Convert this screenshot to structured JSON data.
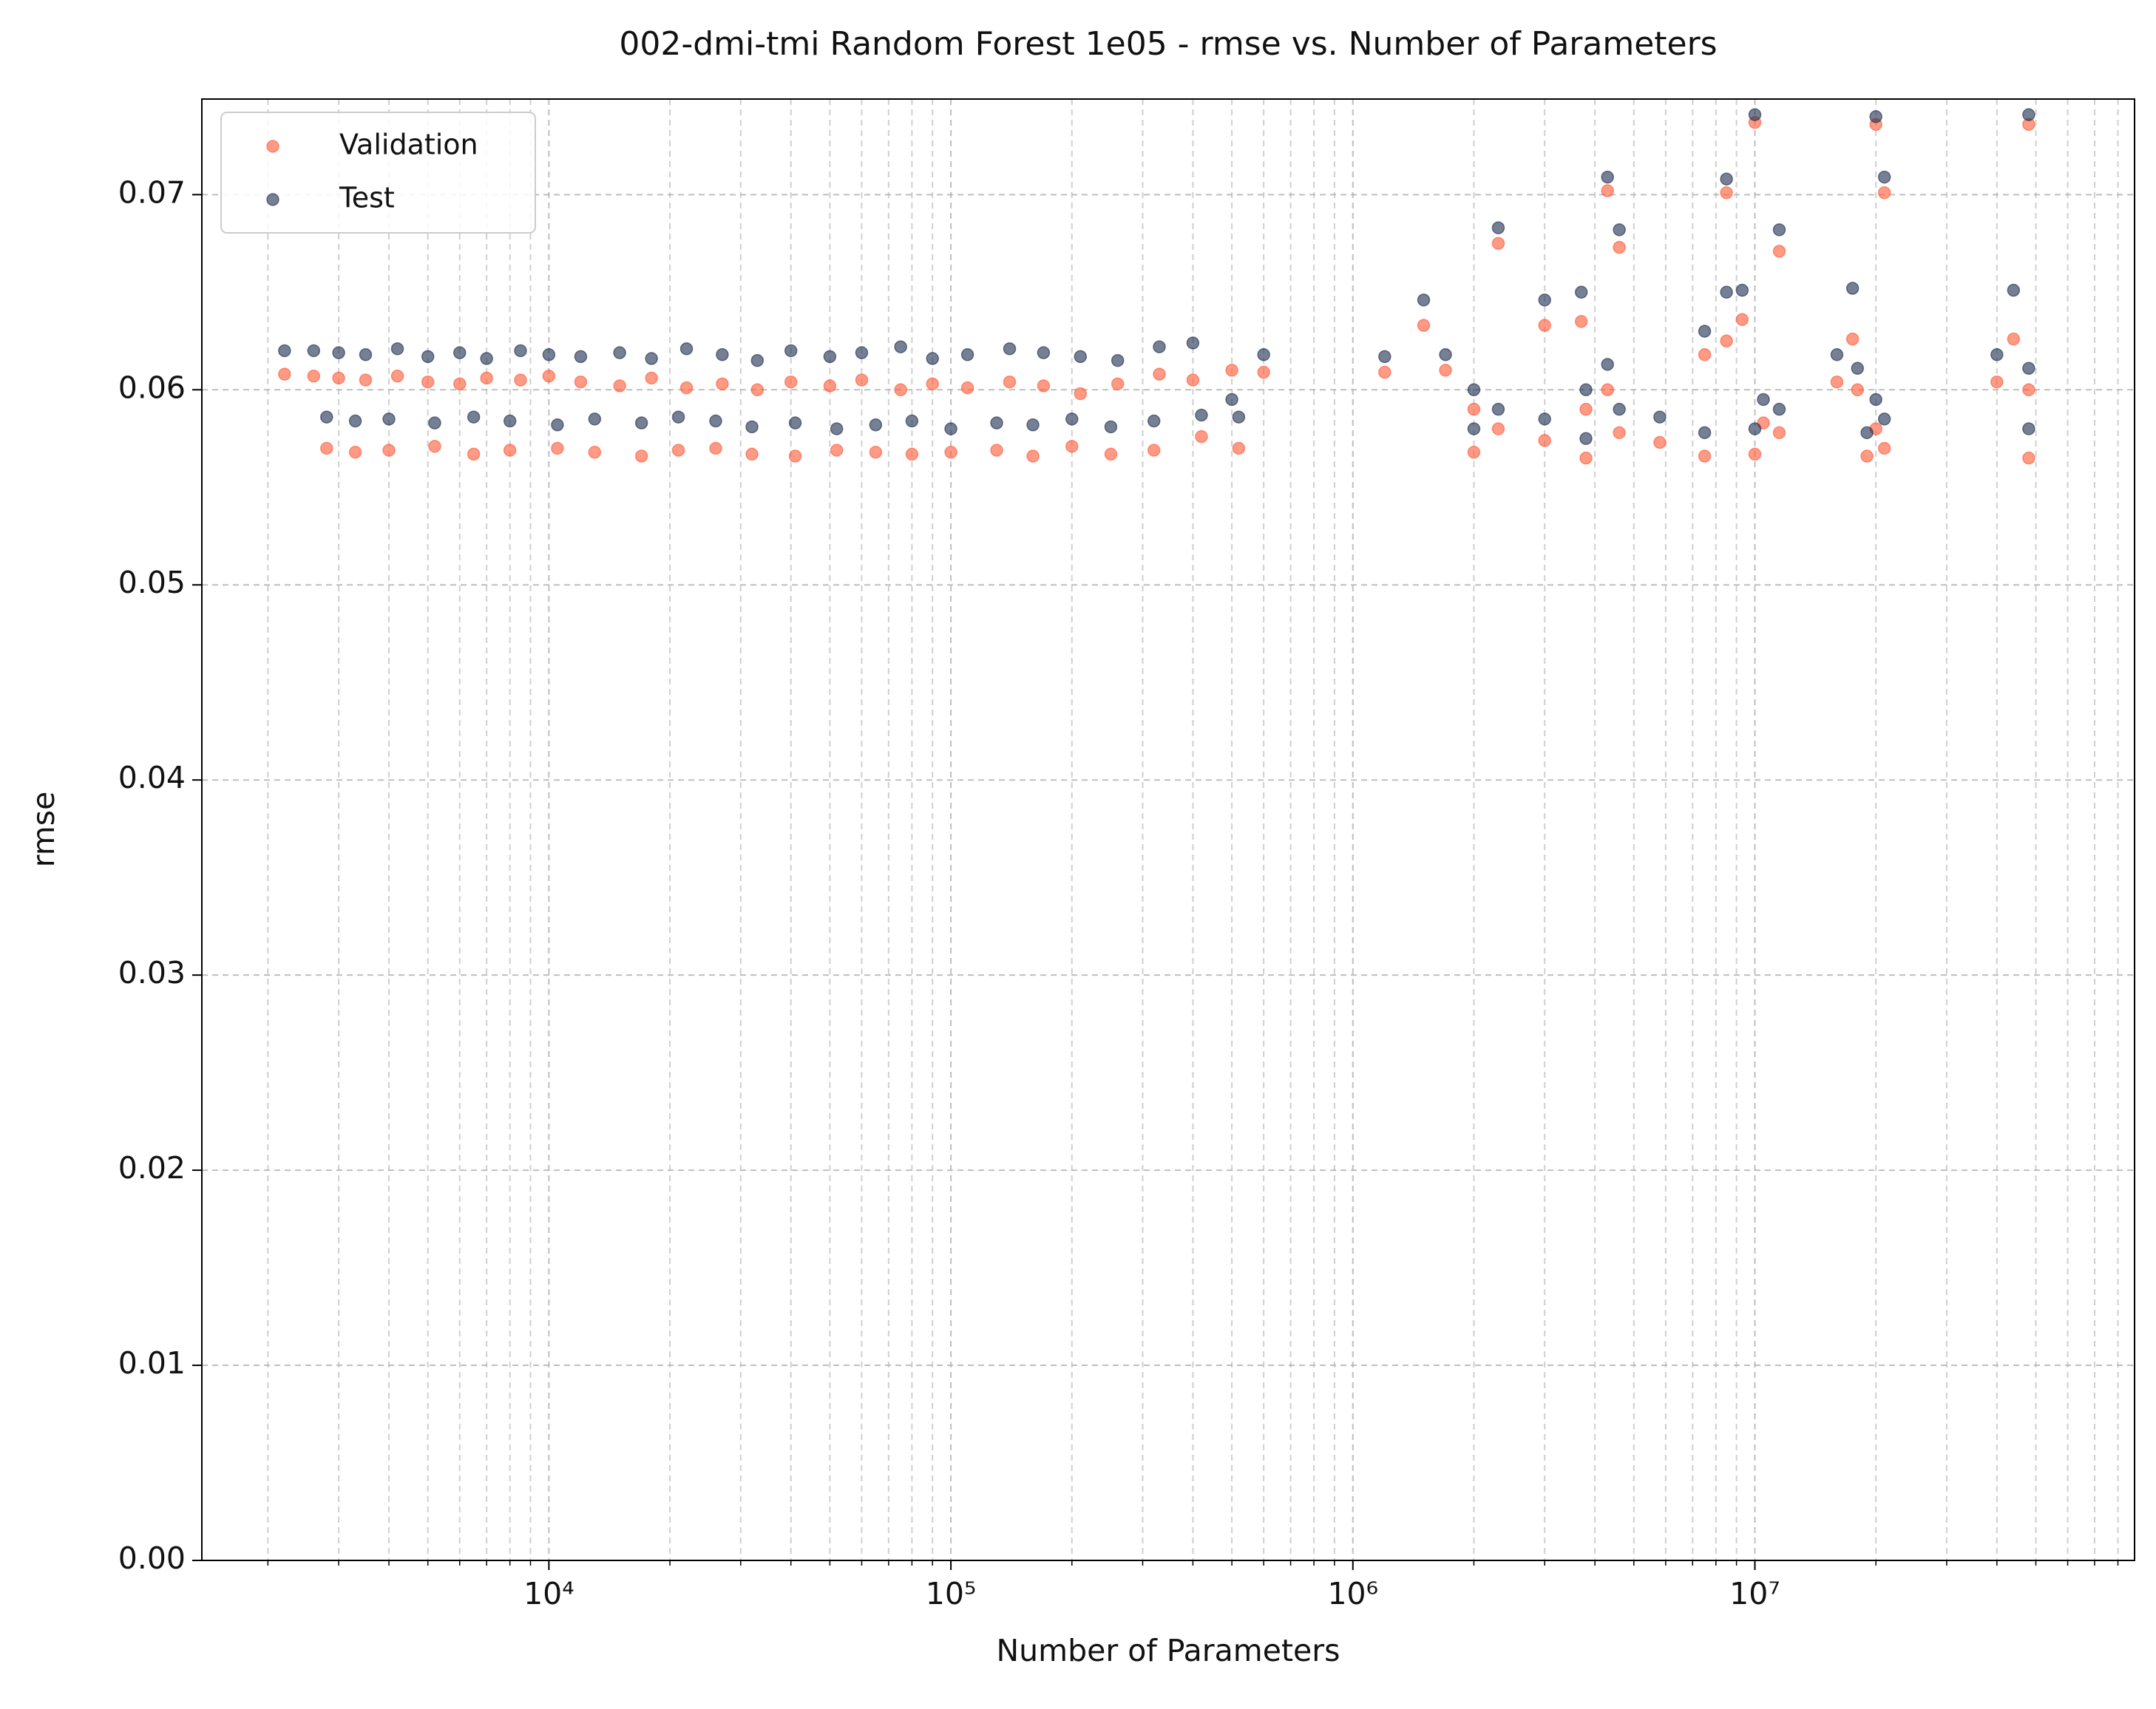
{
  "chart_data": {
    "type": "scatter",
    "title": "002-dmi-tmi Random Forest 1e05 - rmse vs. Number of Parameters",
    "x_label": "Number of Parameters",
    "y_label": "rmse",
    "x_scale": "log",
    "grid": true,
    "legend": "upper left",
    "alpha": 0.6,
    "xlim": [
      1370,
      88000000
    ],
    "ylim": [
      0,
      0.0749
    ],
    "xticks": [
      {
        "value": 10000,
        "label": "10⁴"
      },
      {
        "value": 100000,
        "label": "10⁵"
      },
      {
        "value": 1000000,
        "label": "10⁶"
      },
      {
        "value": 10000000,
        "label": "10⁷"
      }
    ],
    "yticks": [
      {
        "value": 0,
        "label": "0.00"
      },
      0.01,
      0.02,
      0.03,
      0.04,
      0.05,
      0.06,
      0.07
    ],
    "series": [
      {
        "name": "Validation",
        "color": "#ff5733",
        "x": [
          2200,
          2600,
          3000,
          3500,
          4200,
          5000,
          6000,
          7000,
          8500,
          10000,
          12000,
          15000,
          18000,
          22000,
          27000,
          33000,
          40000,
          50000,
          60000,
          75000,
          90000,
          110000,
          140000,
          170000,
          210000,
          260000,
          330000,
          400000,
          500000,
          600000,
          2800,
          3300,
          4000,
          5200,
          6500,
          8000,
          10500,
          13000,
          17000,
          21000,
          26000,
          32000,
          41000,
          52000,
          65000,
          80000,
          100000,
          130000,
          160000,
          200000,
          250000,
          320000,
          420000,
          520000,
          1200000,
          1500000,
          1700000,
          2000000,
          2000000,
          2300000,
          2300000,
          3000000,
          3000000,
          3700000,
          3800000,
          3800000,
          4300000,
          4300000,
          4600000,
          4600000,
          5800000,
          7500000,
          7500000,
          8500000,
          8500000,
          9300000,
          10000000,
          10000000,
          10500000,
          11500000,
          11500000,
          16000000,
          17500000,
          18000000,
          19000000,
          20000000,
          20000000,
          21000000,
          21000000,
          40000000,
          44000000,
          48000000,
          48000000,
          48000000
        ],
        "values": [
          0.0608,
          0.0607,
          0.0606,
          0.0605,
          0.0607,
          0.0604,
          0.0603,
          0.0606,
          0.0605,
          0.0607,
          0.0604,
          0.0602,
          0.0606,
          0.0601,
          0.0603,
          0.06,
          0.0604,
          0.0602,
          0.0605,
          0.06,
          0.0603,
          0.0601,
          0.0604,
          0.0602,
          0.0598,
          0.0603,
          0.0608,
          0.0605,
          0.061,
          0.0609,
          0.057,
          0.0568,
          0.0569,
          0.0571,
          0.0567,
          0.0569,
          0.057,
          0.0568,
          0.0566,
          0.0569,
          0.057,
          0.0567,
          0.0566,
          0.0569,
          0.0568,
          0.0567,
          0.0568,
          0.0569,
          0.0566,
          0.0571,
          0.0567,
          0.0569,
          0.0576,
          0.057,
          0.0609,
          0.0633,
          0.061,
          0.059,
          0.0568,
          0.0675,
          0.058,
          0.0633,
          0.0574,
          0.0635,
          0.059,
          0.0565,
          0.0702,
          0.06,
          0.0673,
          0.0578,
          0.0573,
          0.0618,
          0.0566,
          0.0701,
          0.0625,
          0.0636,
          0.0737,
          0.0567,
          0.0583,
          0.0671,
          0.0578,
          0.0604,
          0.0626,
          0.06,
          0.0566,
          0.0736,
          0.058,
          0.0701,
          0.057,
          0.0604,
          0.0626,
          0.0736,
          0.06,
          0.0565
        ]
      },
      {
        "name": "Test",
        "color": "#1a2b4c",
        "x": [
          2200,
          2600,
          3000,
          3500,
          4200,
          5000,
          6000,
          7000,
          8500,
          10000,
          12000,
          15000,
          18000,
          22000,
          27000,
          33000,
          40000,
          50000,
          60000,
          75000,
          90000,
          110000,
          140000,
          170000,
          210000,
          260000,
          330000,
          400000,
          500000,
          600000,
          2800,
          3300,
          4000,
          5200,
          6500,
          8000,
          10500,
          13000,
          17000,
          21000,
          26000,
          32000,
          41000,
          52000,
          65000,
          80000,
          100000,
          130000,
          160000,
          200000,
          250000,
          320000,
          420000,
          520000,
          1200000,
          1500000,
          1700000,
          2000000,
          2000000,
          2300000,
          2300000,
          3000000,
          3000000,
          3700000,
          3800000,
          3800000,
          4300000,
          4300000,
          4600000,
          4600000,
          5800000,
          7500000,
          7500000,
          8500000,
          8500000,
          9300000,
          10000000,
          10000000,
          10500000,
          11500000,
          11500000,
          16000000,
          17500000,
          18000000,
          19000000,
          20000000,
          20000000,
          21000000,
          21000000,
          40000000,
          44000000,
          48000000,
          48000000,
          48000000
        ],
        "values": [
          0.062,
          0.062,
          0.0619,
          0.0618,
          0.0621,
          0.0617,
          0.0619,
          0.0616,
          0.062,
          0.0618,
          0.0617,
          0.0619,
          0.0616,
          0.0621,
          0.0618,
          0.0615,
          0.062,
          0.0617,
          0.0619,
          0.0622,
          0.0616,
          0.0618,
          0.0621,
          0.0619,
          0.0617,
          0.0615,
          0.0622,
          0.0624,
          0.0595,
          0.0618,
          0.0586,
          0.0584,
          0.0585,
          0.0583,
          0.0586,
          0.0584,
          0.0582,
          0.0585,
          0.0583,
          0.0586,
          0.0584,
          0.0581,
          0.0583,
          0.058,
          0.0582,
          0.0584,
          0.058,
          0.0583,
          0.0582,
          0.0585,
          0.0581,
          0.0584,
          0.0587,
          0.0586,
          0.0617,
          0.0646,
          0.0618,
          0.06,
          0.058,
          0.0683,
          0.059,
          0.0646,
          0.0585,
          0.065,
          0.06,
          0.0575,
          0.0709,
          0.0613,
          0.0682,
          0.059,
          0.0586,
          0.063,
          0.0578,
          0.0708,
          0.065,
          0.0651,
          0.0741,
          0.058,
          0.0595,
          0.0682,
          0.059,
          0.0618,
          0.0652,
          0.0611,
          0.0578,
          0.074,
          0.0595,
          0.0709,
          0.0585,
          0.0618,
          0.0651,
          0.0741,
          0.0611,
          0.058
        ]
      }
    ]
  }
}
